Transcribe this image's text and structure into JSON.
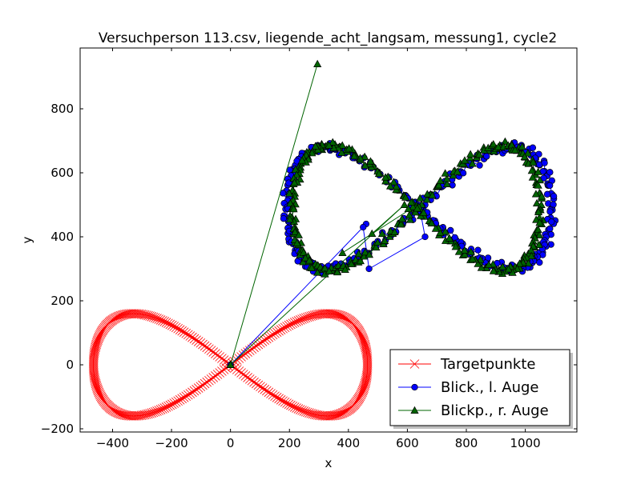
{
  "chart_data": {
    "type": "line",
    "title": "Versuchperson 113.csv, liegende_acht_langsam, messung1, cycle2",
    "xlabel": "x",
    "ylabel": "y",
    "xlim": [
      -510,
      1175
    ],
    "ylim": [
      -210,
      990
    ],
    "xticks": [
      -400,
      -200,
      0,
      200,
      400,
      600,
      800,
      1000
    ],
    "yticks": [
      -200,
      0,
      200,
      400,
      600,
      800
    ],
    "xtick_labels": [
      "−400",
      "−200",
      "0",
      "200",
      "400",
      "600",
      "800",
      "1000"
    ],
    "ytick_labels": [
      "−200",
      "0",
      "200",
      "400",
      "600",
      "800"
    ],
    "grid": false,
    "legend_position": "bottom-right",
    "series": [
      {
        "name": "Targetpunkte",
        "color": "#ff0000",
        "marker": "x",
        "shape": "lemniscate",
        "center": [
          0,
          0
        ],
        "half_width": 465,
        "half_height": 160,
        "points": 400
      },
      {
        "name": "Blick., l. Auge",
        "color": "#0000ff",
        "marker": "circle",
        "shape": "lemniscate",
        "center": [
          640,
          490
        ],
        "half_width": 450,
        "half_height": 190,
        "points": 330,
        "extra_points": [
          [
            0,
            0
          ],
          [
            460,
            440
          ],
          [
            450,
            430
          ],
          [
            470,
            300
          ],
          [
            660,
            400
          ]
        ]
      },
      {
        "name": "Blickp., r. Auge",
        "color": "#006400",
        "marker": "triangle",
        "shape": "lemniscate",
        "center": [
          630,
          490
        ],
        "half_width": 420,
        "half_height": 195,
        "points": 330,
        "extra_points": [
          [
            0,
            0
          ],
          [
            295,
            940
          ],
          [
            0,
            0
          ],
          [
            590,
            500
          ],
          [
            480,
            410
          ],
          [
            380,
            350
          ]
        ]
      }
    ]
  }
}
